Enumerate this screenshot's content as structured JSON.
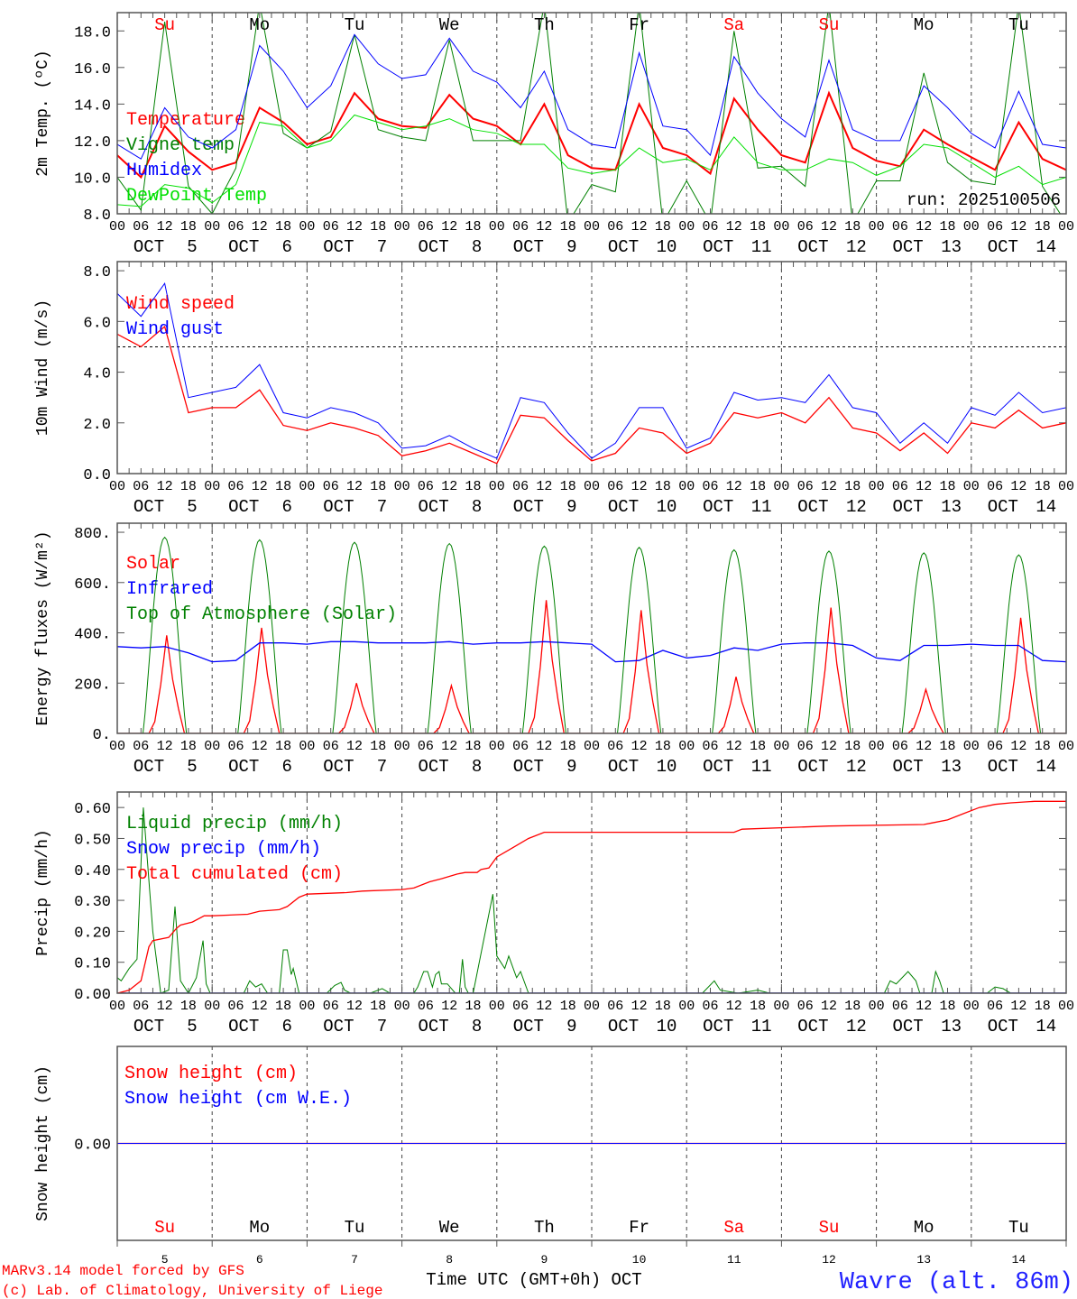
{
  "colors": {
    "red": "#ff0000",
    "blue": "#0000ff",
    "green": "#008000",
    "lime": "#00e000",
    "black": "#000000"
  },
  "time_axis": {
    "month": "OCT",
    "days": [
      "5",
      "6",
      "7",
      "8",
      "9",
      "10",
      "11",
      "12",
      "13",
      "14"
    ],
    "hour_labels": [
      "00",
      "06",
      "12",
      "18"
    ],
    "final_hour_label": "00",
    "weekdays": [
      {
        "label": "Su",
        "color": "#ff0000"
      },
      {
        "label": "Mo",
        "color": "#000000"
      },
      {
        "label": "Tu",
        "color": "#000000"
      },
      {
        "label": "We",
        "color": "#000000"
      },
      {
        "label": "Th",
        "color": "#000000"
      },
      {
        "label": "Fr",
        "color": "#000000"
      },
      {
        "label": "Sa",
        "color": "#ff0000"
      },
      {
        "label": "Su",
        "color": "#ff0000"
      },
      {
        "label": "Mo",
        "color": "#000000"
      },
      {
        "label": "Tu",
        "color": "#000000"
      }
    ],
    "xlabel": "Time UTC (GMT+0h) OCT",
    "hours_range": [
      0,
      240
    ]
  },
  "footer": {
    "model": "MARv3.14 model forced by GFS",
    "credit": "(c) Lab. of Climatology, University of Liege",
    "location": "Wavre (alt. 86m)"
  },
  "chart_data": [
    {
      "type": "line",
      "ylabel": "2m Temp. (ºC)",
      "ylim": [
        8,
        19
      ],
      "annotation": "run: 2025100506",
      "yticks": [
        {
          "v": 8,
          "label": "8.0"
        },
        {
          "v": 10,
          "label": "10.0"
        },
        {
          "v": 12,
          "label": "12.0"
        },
        {
          "v": 14,
          "label": "14.0"
        },
        {
          "v": 16,
          "label": "16.0"
        },
        {
          "v": 18,
          "label": "18.0"
        }
      ],
      "x_step_hours": 6,
      "series": [
        {
          "name": "Temperature",
          "color": "#ff0000",
          "width": 2,
          "values": [
            11.2,
            10.0,
            12.8,
            11.4,
            10.4,
            10.8,
            13.8,
            13.0,
            11.8,
            12.2,
            14.6,
            13.2,
            12.8,
            12.7,
            14.5,
            13.2,
            12.8,
            11.8,
            14.0,
            11.2,
            10.5,
            10.4,
            14.0,
            11.6,
            11.2,
            10.2,
            14.3,
            12.6,
            11.2,
            10.8,
            14.6,
            11.6,
            10.9,
            10.6,
            12.6,
            11.8,
            11.1,
            10.4,
            13.0,
            11.0,
            10.4
          ]
        },
        {
          "name": "Vigne temp",
          "color": "#008000",
          "width": 1,
          "values": [
            10.0,
            8.2,
            18.5,
            9.5,
            8.0,
            10.5,
            19.5,
            12.4,
            11.6,
            12.5,
            17.8,
            12.6,
            12.2,
            12.0,
            17.5,
            12.0,
            12.0,
            12.0,
            19.5,
            7.5,
            9.6,
            9.2,
            19.5,
            7.5,
            9.8,
            7.5,
            18.0,
            10.5,
            10.6,
            9.5,
            19.5,
            7.5,
            9.8,
            9.8,
            15.7,
            10.8,
            9.8,
            9.6,
            19.5,
            9.5,
            7.5
          ]
        },
        {
          "name": "Humidex",
          "color": "#0000ff",
          "width": 1,
          "values": [
            11.8,
            11.0,
            13.8,
            12.2,
            11.6,
            12.6,
            17.2,
            15.8,
            13.8,
            15.0,
            17.8,
            16.2,
            15.4,
            15.6,
            17.6,
            15.8,
            15.2,
            13.8,
            15.8,
            12.6,
            11.8,
            11.6,
            16.8,
            12.8,
            12.6,
            11.2,
            16.6,
            14.6,
            13.2,
            12.2,
            16.4,
            12.6,
            12.0,
            12.0,
            15.0,
            13.8,
            12.4,
            11.6,
            14.7,
            11.8,
            11.6
          ]
        },
        {
          "name": "DewPoint Temp",
          "color": "#00e000",
          "width": 1,
          "values": [
            8.5,
            8.4,
            9.6,
            9.4,
            8.6,
            9.6,
            13.0,
            12.8,
            11.6,
            12.0,
            13.4,
            13.0,
            12.6,
            12.8,
            13.2,
            12.6,
            12.4,
            11.8,
            11.8,
            10.5,
            10.2,
            10.4,
            11.6,
            10.8,
            11.0,
            10.4,
            12.2,
            10.8,
            10.4,
            10.4,
            11.0,
            10.8,
            10.1,
            10.6,
            11.8,
            11.6,
            10.8,
            10.0,
            10.6,
            9.6,
            10.0
          ]
        }
      ]
    },
    {
      "type": "line",
      "ylabel": "10m Wind (m/s)",
      "ylim": [
        0,
        8.36
      ],
      "reference_line": 5,
      "yticks": [
        {
          "v": 0,
          "label": "0.0"
        },
        {
          "v": 2,
          "label": "2.0"
        },
        {
          "v": 4,
          "label": "4.0"
        },
        {
          "v": 6,
          "label": "6.0"
        },
        {
          "v": 8,
          "label": "8.0"
        }
      ],
      "x_step_hours": 6,
      "series": [
        {
          "name": "Wind speed",
          "color": "#ff0000",
          "width": 1.3,
          "values": [
            5.5,
            5.0,
            5.8,
            2.4,
            2.6,
            2.6,
            3.3,
            1.9,
            1.7,
            2.0,
            1.8,
            1.5,
            0.7,
            0.9,
            1.2,
            0.8,
            0.4,
            2.3,
            2.2,
            1.3,
            0.5,
            0.8,
            1.8,
            1.6,
            0.8,
            1.2,
            2.4,
            2.2,
            2.4,
            2.0,
            3.0,
            1.8,
            1.6,
            0.9,
            1.6,
            0.8,
            2.0,
            1.8,
            2.5,
            1.8,
            2.0
          ]
        },
        {
          "name": "Wind gust",
          "color": "#0000ff",
          "width": 1,
          "values": [
            7.1,
            6.2,
            7.5,
            3.0,
            3.2,
            3.4,
            4.3,
            2.4,
            2.2,
            2.6,
            2.4,
            2.0,
            1.0,
            1.1,
            1.5,
            1.0,
            0.6,
            3.0,
            2.8,
            1.6,
            0.6,
            1.2,
            2.6,
            2.6,
            1.0,
            1.4,
            3.2,
            2.9,
            3.0,
            2.8,
            3.9,
            2.6,
            2.4,
            1.2,
            2.0,
            1.2,
            2.6,
            2.3,
            3.2,
            2.4,
            2.6
          ]
        }
      ]
    },
    {
      "type": "line",
      "ylabel": "Energy fluxes (W/m²)",
      "ylim": [
        0,
        836
      ],
      "yticks": [
        {
          "v": 0,
          "label": "0."
        },
        {
          "v": 200,
          "label": "200."
        },
        {
          "v": 400,
          "label": "400."
        },
        {
          "v": 600,
          "label": "600."
        },
        {
          "v": 800,
          "label": "800."
        }
      ],
      "series": [
        {
          "name": "Solar",
          "color": "#ff0000",
          "width": 1.3,
          "daily_peak": [
            390,
            420,
            200,
            190,
            530,
            490,
            225,
            500,
            175,
            460
          ]
        },
        {
          "name": "Infrared",
          "color": "#0000ff",
          "width": 1.3,
          "x_step_hours": 6,
          "values": [
            345,
            340,
            345,
            320,
            285,
            290,
            360,
            360,
            355,
            365,
            365,
            360,
            360,
            360,
            365,
            355,
            360,
            360,
            365,
            360,
            355,
            285,
            290,
            330,
            300,
            310,
            340,
            330,
            355,
            360,
            360,
            350,
            300,
            290,
            350,
            350,
            355,
            350,
            350,
            290,
            285
          ]
        },
        {
          "name": "Top of Atmosphere (Solar)",
          "color": "#008000",
          "width": 1,
          "daily_peak": [
            780,
            770,
            760,
            755,
            745,
            740,
            730,
            725,
            718,
            710
          ],
          "daylight_hours": [
            6.5,
            17.5
          ]
        }
      ]
    },
    {
      "type": "line",
      "ylabel": "Precip (mm/h)",
      "ylim": [
        0,
        0.65
      ],
      "yticks": [
        {
          "v": 0,
          "label": "0.00"
        },
        {
          "v": 0.1,
          "label": "0.10"
        },
        {
          "v": 0.2,
          "label": "0.20"
        },
        {
          "v": 0.3,
          "label": "0.30"
        },
        {
          "v": 0.4,
          "label": "0.40"
        },
        {
          "v": 0.5,
          "label": "0.50"
        },
        {
          "v": 0.6,
          "label": "0.60"
        }
      ],
      "series": [
        {
          "name": "Liquid precip (mm/h)",
          "color": "#008000",
          "width": 1,
          "points": [
            [
              0,
              0.05
            ],
            [
              1,
              0.04
            ],
            [
              3,
              0.08
            ],
            [
              5,
              0.11
            ],
            [
              6.6,
              0.6
            ],
            [
              9,
              0.2
            ],
            [
              11,
              0
            ],
            [
              13,
              0.01
            ],
            [
              14.6,
              0.28
            ],
            [
              16,
              0.04
            ],
            [
              18,
              0
            ],
            [
              20,
              0.05
            ],
            [
              21.7,
              0.17
            ],
            [
              22.5,
              0.03
            ],
            [
              23.5,
              0
            ],
            [
              32,
              0
            ],
            [
              33.5,
              0.04
            ],
            [
              35,
              0.02
            ],
            [
              36.5,
              0.03
            ],
            [
              38,
              0
            ],
            [
              41,
              0
            ],
            [
              42,
              0.14
            ],
            [
              43,
              0.14
            ],
            [
              44,
              0.06
            ],
            [
              44.5,
              0.08
            ],
            [
              46,
              0
            ],
            [
              53,
              0
            ],
            [
              55,
              0.025
            ],
            [
              56.6,
              0.035
            ],
            [
              57.5,
              0.01
            ],
            [
              59,
              0
            ],
            [
              64,
              0
            ],
            [
              67,
              0.015
            ],
            [
              69,
              0
            ],
            [
              75,
              0
            ],
            [
              76,
              0.02
            ],
            [
              77.5,
              0.07
            ],
            [
              78.5,
              0.07
            ],
            [
              79.7,
              0.02
            ],
            [
              80.5,
              0.06
            ],
            [
              81.4,
              0.07
            ],
            [
              82,
              0.03
            ],
            [
              83.5,
              0.03
            ],
            [
              85.5,
              0
            ],
            [
              86.5,
              0
            ],
            [
              87.3,
              0.11
            ],
            [
              88,
              0.02
            ],
            [
              88.8,
              0
            ],
            [
              90,
              0
            ],
            [
              95,
              0.32
            ],
            [
              96,
              0.12
            ],
            [
              97,
              0.1
            ],
            [
              98,
              0.08
            ],
            [
              99,
              0.12
            ],
            [
              101,
              0.05
            ],
            [
              102,
              0.07
            ],
            [
              104,
              0
            ],
            [
              148,
              0
            ],
            [
              151,
              0.04
            ],
            [
              152.5,
              0.01
            ],
            [
              157,
              0
            ],
            [
              162,
              0.01
            ],
            [
              165,
              0
            ],
            [
              194,
              0
            ],
            [
              195.5,
              0.04
            ],
            [
              197,
              0.03
            ],
            [
              200,
              0.07
            ],
            [
              202,
              0.04
            ],
            [
              203,
              0
            ],
            [
              206,
              0
            ],
            [
              207,
              0.07
            ],
            [
              208,
              0.04
            ],
            [
              209,
              0
            ],
            [
              220,
              0
            ],
            [
              222,
              0.02
            ],
            [
              224,
              0.015
            ],
            [
              226,
              0
            ]
          ]
        },
        {
          "name": "Snow precip (mm/h)",
          "color": "#0000ff",
          "width": 1.5,
          "points": [
            [
              0,
              0
            ],
            [
              240,
              0
            ]
          ]
        },
        {
          "name": "Total cumulated (cm)",
          "color": "#ff0000",
          "width": 1.3,
          "points": [
            [
              0,
              0
            ],
            [
              3,
              0.01
            ],
            [
              6,
              0.04
            ],
            [
              8,
              0.15
            ],
            [
              9,
              0.17
            ],
            [
              13,
              0.18
            ],
            [
              15,
              0.21
            ],
            [
              16,
              0.22
            ],
            [
              19,
              0.23
            ],
            [
              22,
              0.25
            ],
            [
              24,
              0.25
            ],
            [
              33,
              0.255
            ],
            [
              36,
              0.265
            ],
            [
              41,
              0.27
            ],
            [
              43,
              0.28
            ],
            [
              46,
              0.31
            ],
            [
              48,
              0.32
            ],
            [
              58,
              0.325
            ],
            [
              62,
              0.33
            ],
            [
              72,
              0.335
            ],
            [
              75,
              0.34
            ],
            [
              79,
              0.36
            ],
            [
              82,
              0.37
            ],
            [
              86,
              0.385
            ],
            [
              88,
              0.39
            ],
            [
              91,
              0.39
            ],
            [
              92,
              0.4
            ],
            [
              94,
              0.405
            ],
            [
              96,
              0.44
            ],
            [
              100,
              0.47
            ],
            [
              104,
              0.5
            ],
            [
              108,
              0.52
            ],
            [
              130,
              0.52
            ],
            [
              156,
              0.52
            ],
            [
              158,
              0.53
            ],
            [
              180,
              0.54
            ],
            [
              204,
              0.545
            ],
            [
              206,
              0.55
            ],
            [
              210,
              0.56
            ],
            [
              214,
              0.58
            ],
            [
              218,
              0.6
            ],
            [
              222,
              0.61
            ],
            [
              226,
              0.615
            ],
            [
              232,
              0.62
            ],
            [
              240,
              0.62
            ]
          ]
        }
      ]
    },
    {
      "type": "line",
      "ylabel": "Snow height (cm)",
      "ylim": [
        -1,
        1
      ],
      "yticks": [
        {
          "v": 0,
          "label": "0.00"
        }
      ],
      "series": [
        {
          "name": "Snow height (cm)",
          "color": "#ff0000",
          "width": 1.3,
          "points": [
            [
              0,
              0
            ],
            [
              240,
              0
            ]
          ]
        },
        {
          "name": "Snow height (cm W.E.)",
          "color": "#0000ff",
          "width": 1,
          "points": [
            [
              0,
              0
            ],
            [
              240,
              0
            ]
          ]
        }
      ]
    }
  ]
}
